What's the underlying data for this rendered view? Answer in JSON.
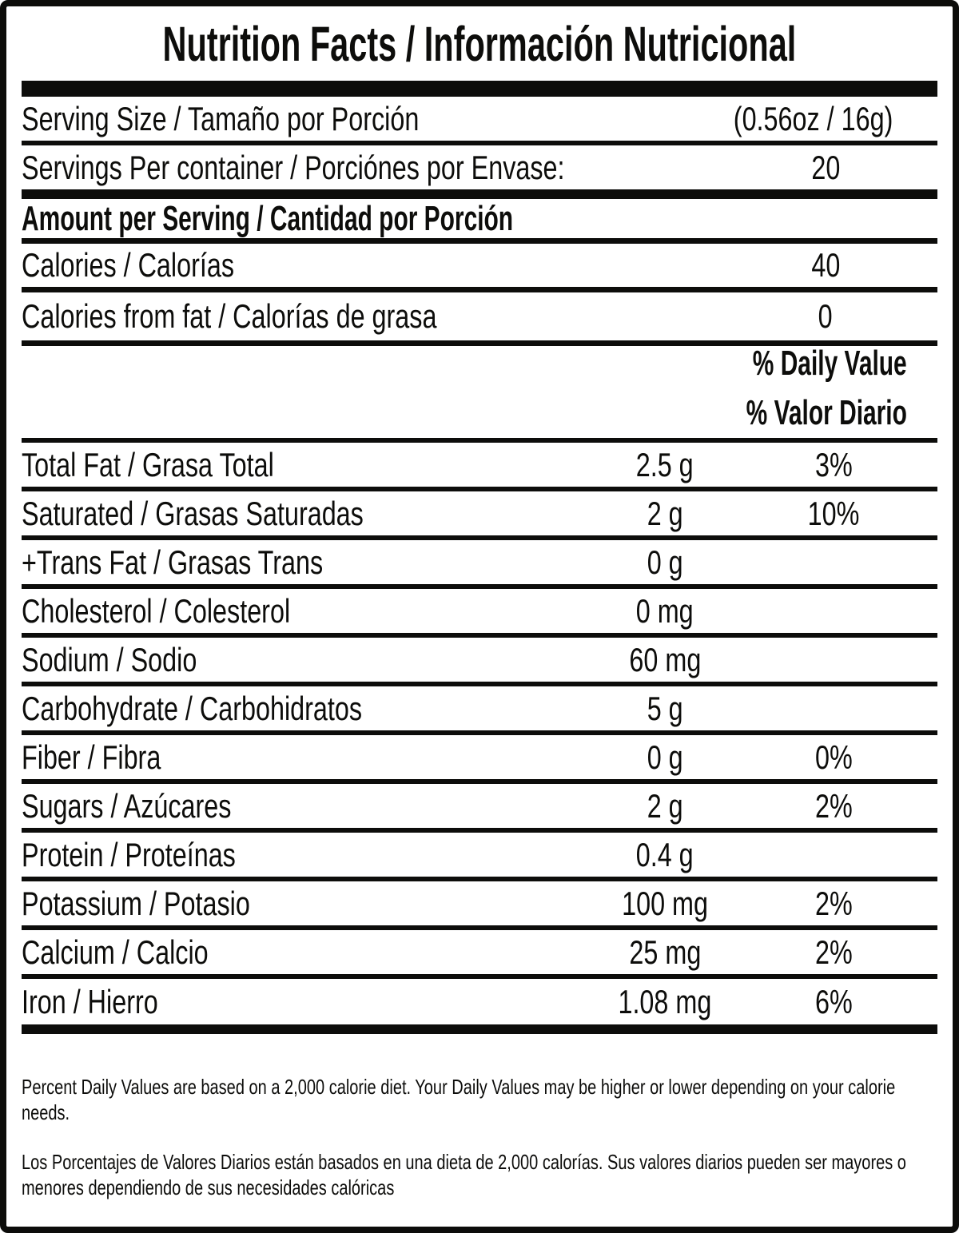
{
  "title": "Nutrition Facts / Información Nutricional",
  "serving_size": {
    "label": "Serving Size / Tamaño por Porción",
    "value": "(0.56oz / 16g)"
  },
  "servings_per_container": {
    "label": "Servings Per container / Porciónes por Envase:",
    "value": "20"
  },
  "section_header": "Amount per Serving / Cantidad por Porción",
  "calories": {
    "label": "Calories / Calorías",
    "value": "40"
  },
  "calories_from_fat": {
    "label": "Calories from fat / Calorías de grasa",
    "value": "0"
  },
  "daily_value_header": {
    "en": "% Daily Value",
    "es": "% Valor Diario"
  },
  "nutrients": [
    {
      "label": "Total Fat / Grasa Total",
      "amount": "2.5 g",
      "daily_value": "3%"
    },
    {
      "label": "Saturated / Grasas Saturadas",
      "amount": "2 g",
      "daily_value": "10%"
    },
    {
      "label": "+Trans Fat / Grasas Trans",
      "amount": "0 g",
      "daily_value": ""
    },
    {
      "label": "Cholesterol / Colesterol",
      "amount": "0 mg",
      "daily_value": ""
    },
    {
      "label": "Sodium / Sodio",
      "amount": "60 mg",
      "daily_value": ""
    },
    {
      "label": "Carbohydrate / Carbohidratos",
      "amount": "5 g",
      "daily_value": ""
    },
    {
      "label": "Fiber / Fibra",
      "amount": "0 g",
      "daily_value": "0%"
    },
    {
      "label": "Sugars / Azúcares",
      "amount": "2 g",
      "daily_value": "2%"
    },
    {
      "label": "Protein / Proteínas",
      "amount": "0.4 g",
      "daily_value": ""
    },
    {
      "label": "Potassium / Potasio",
      "amount": "100 mg",
      "daily_value": "2%"
    },
    {
      "label": "Calcium / Calcio",
      "amount": "25 mg",
      "daily_value": "2%"
    },
    {
      "label": "Iron / Hierro",
      "amount": "1.08 mg",
      "daily_value": "6%"
    }
  ],
  "footnotes": {
    "en": "Percent Daily Values are based on a 2,000 calorie diet. Your Daily Values may be higher or lower depending on your calorie needs.",
    "es": "Los Porcentajes de Valores Diarios están basados en una dieta de 2,000 calorías. Sus valores diarios pueden ser mayores o menores dependiendo de sus necesidades calóricas"
  },
  "colors": {
    "text": "#0d0d0b",
    "background": "#ffffff"
  }
}
